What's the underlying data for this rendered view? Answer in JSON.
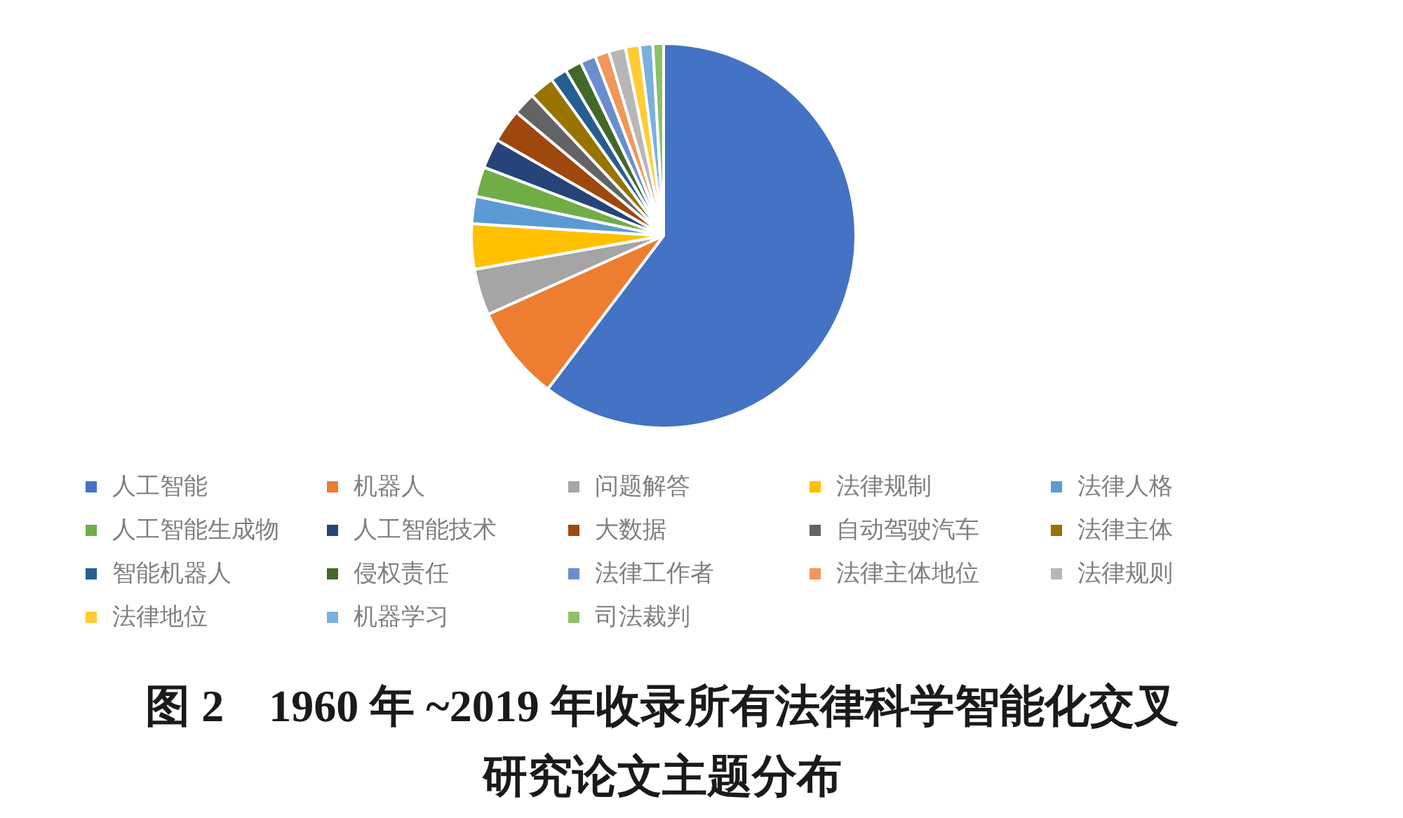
{
  "chart_data": {
    "type": "pie",
    "categories": [
      "人工智能",
      "机器人",
      "问题解答",
      "法律规制",
      "法律人格",
      "人工智能生成物",
      "人工智能技术",
      "大数据",
      "自动驾驶汽车",
      "法律主体",
      "智能机器人",
      "侵权责任",
      "法律工作者",
      "法律主体地位",
      "法律规则",
      "法律地位",
      "机器学习",
      "司法裁判"
    ],
    "values": [
      60.3,
      8.0,
      3.9,
      3.8,
      2.3,
      2.5,
      2.5,
      2.8,
      1.9,
      2.1,
      1.4,
      1.4,
      1.3,
      1.2,
      1.4,
      1.2,
      1.1,
      0.9
    ],
    "colors": [
      "#4472c4",
      "#ed7d31",
      "#a5a5a5",
      "#ffc000",
      "#5b9bd5",
      "#70ad47",
      "#264478",
      "#9e480e",
      "#636363",
      "#997300",
      "#255e91",
      "#43682b",
      "#698ed0",
      "#f1975a",
      "#b7b7b7",
      "#ffcd33",
      "#7cafdd",
      "#8cc168"
    ],
    "legend": "bottom",
    "annotations": [
      "图 2　1960 年 ~2019 年收录所有法律科学智能化交叉研究论文主题分布"
    ]
  }
}
